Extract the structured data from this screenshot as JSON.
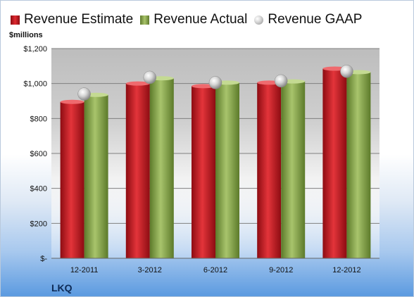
{
  "legend": {
    "estimate": "Revenue Estimate",
    "actual": "Revenue Actual",
    "gaap": "Revenue GAAP"
  },
  "unit_label": "$millions",
  "company": "LKQ",
  "colors": {
    "estimate": "#d9262d",
    "actual": "#9bbb59",
    "gaap": "#c8c8c8",
    "plot_bg": "#c9c9c9"
  },
  "chart_data": {
    "type": "bar",
    "categories": [
      "12-2011",
      "3-2012",
      "6-2012",
      "9-2012",
      "12-2012"
    ],
    "series": [
      {
        "name": "Revenue Estimate",
        "values": [
          895,
          1000,
          985,
          1005,
          1085
        ]
      },
      {
        "name": "Revenue Actual",
        "values": [
          935,
          1030,
          1005,
          1012,
          1065
        ]
      },
      {
        "name": "Revenue GAAP",
        "values": [
          940,
          1035,
          1005,
          1015,
          1070
        ]
      }
    ],
    "ylim": [
      0,
      1200
    ],
    "y_ticks": [
      0,
      200,
      400,
      600,
      800,
      1000,
      1200
    ],
    "y_tick_labels": [
      "$-",
      "$200",
      "$400",
      "$600",
      "$800",
      "$1,000",
      "$1,200"
    ],
    "ylabel": "$millions",
    "grid": true,
    "legend_position": "top"
  }
}
